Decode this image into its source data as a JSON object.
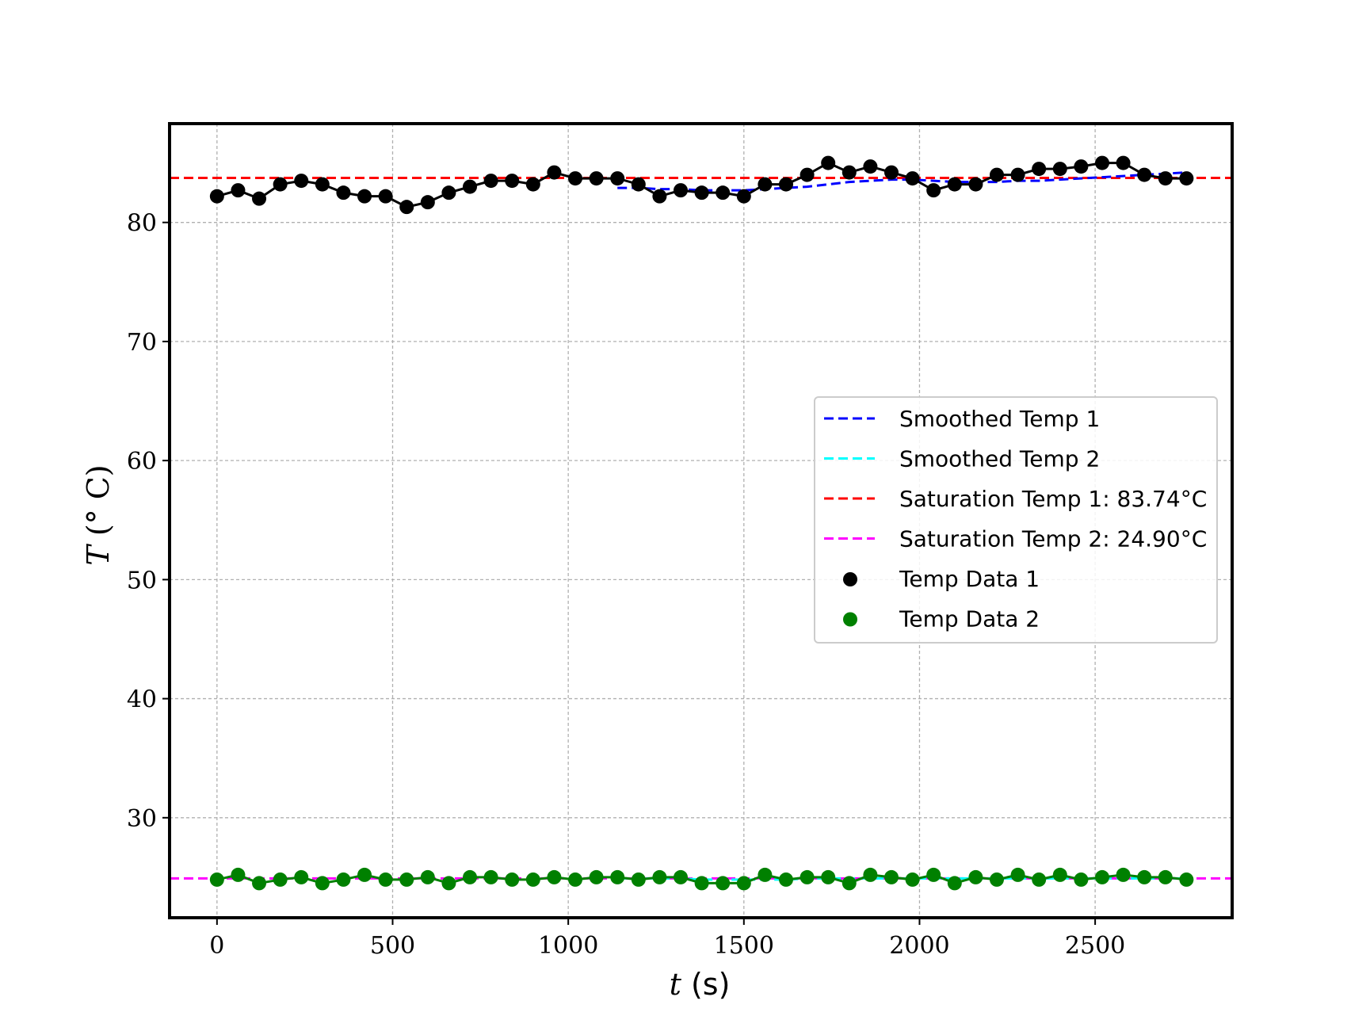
{
  "chart_data": {
    "type": "line",
    "title": "",
    "xlabel": {
      "var": "t",
      "unit": " (s)"
    },
    "ylabel": {
      "var": "T",
      "unit": " (° C)"
    },
    "xlim": [
      -135,
      2890
    ],
    "ylim": [
      21.6,
      88.3
    ],
    "xticks": [
      0,
      500,
      1000,
      1500,
      2000,
      2500
    ],
    "yticks": [
      30,
      40,
      50,
      60,
      70,
      80
    ],
    "grid": true,
    "legend_position": "center-right",
    "colors": {
      "temp1": "#000000",
      "temp2": "#008000",
      "smooth1": "#0000ff",
      "smooth2": "#00ffff",
      "sat1": "#ff0000",
      "sat2": "#ff00ff"
    },
    "legend": [
      {
        "label": "Smoothed Temp 1",
        "style": "dashed",
        "color": "#0000ff"
      },
      {
        "label": "Smoothed Temp 2",
        "style": "dashed",
        "color": "#00ffff"
      },
      {
        "label": "Saturation Temp 1: 83.74°C",
        "style": "dashed",
        "color": "#ff0000"
      },
      {
        "label": "Saturation Temp 2: 24.90°C",
        "style": "dashed",
        "color": "#ff00ff"
      },
      {
        "label": "Temp Data 1",
        "style": "marker",
        "color": "#000000"
      },
      {
        "label": "Temp Data 2",
        "style": "marker",
        "color": "#008000"
      }
    ],
    "saturation_temp_1": 83.74,
    "saturation_temp_2": 24.9,
    "x": [
      0,
      60,
      120,
      180,
      240,
      300,
      360,
      420,
      480,
      540,
      600,
      660,
      720,
      780,
      840,
      900,
      960,
      1020,
      1080,
      1140,
      1200,
      1260,
      1320,
      1380,
      1440,
      1500,
      1560,
      1620,
      1680,
      1740,
      1800,
      1860,
      1920,
      1980,
      2040,
      2100,
      2160,
      2220,
      2280,
      2340,
      2400,
      2460,
      2520,
      2580,
      2640,
      2700,
      2760
    ],
    "temp_data_1": [
      82.2,
      82.7,
      82.0,
      83.2,
      83.5,
      83.2,
      82.5,
      82.2,
      82.2,
      81.3,
      81.7,
      82.5,
      83.0,
      83.5,
      83.5,
      83.2,
      84.2,
      83.7,
      83.7,
      83.7,
      83.2,
      82.2,
      82.7,
      82.5,
      82.5,
      82.2,
      83.2,
      83.2,
      84.0,
      85.0,
      84.2,
      84.7,
      84.2,
      83.7,
      82.7,
      83.2,
      83.2,
      84.0,
      84.0,
      84.5,
      84.5,
      84.7,
      85.0,
      85.0,
      84.0,
      83.7,
      83.7
    ],
    "temp_data_2": [
      24.8,
      25.2,
      24.5,
      24.8,
      25.0,
      24.5,
      24.8,
      25.2,
      24.8,
      24.8,
      25.0,
      24.5,
      25.0,
      25.0,
      24.8,
      24.8,
      25.0,
      24.8,
      25.0,
      25.0,
      24.8,
      25.0,
      25.0,
      24.5,
      24.5,
      24.5,
      25.2,
      24.8,
      25.0,
      25.0,
      24.5,
      25.2,
      25.0,
      24.8,
      25.2,
      24.5,
      25.0,
      24.8,
      25.2,
      24.8,
      25.2,
      24.8,
      25.0,
      25.2,
      25.0,
      25.0,
      24.8
    ],
    "smoothed_1": {
      "x": [
        1140,
        1200,
        1260,
        1320,
        1380,
        1440,
        1500,
        1560,
        1620,
        1680,
        1740,
        1800,
        1860,
        1920,
        1980,
        2040,
        2100,
        2160,
        2220,
        2280,
        2340,
        2400,
        2460,
        2520,
        2580,
        2640,
        2700,
        2760
      ],
      "y": [
        82.9,
        82.9,
        82.8,
        82.8,
        82.7,
        82.7,
        82.7,
        82.8,
        82.9,
        83.0,
        83.2,
        83.4,
        83.5,
        83.6,
        83.6,
        83.5,
        83.4,
        83.4,
        83.4,
        83.5,
        83.5,
        83.6,
        83.7,
        83.8,
        83.9,
        84.0,
        84.1,
        84.2
      ]
    },
    "smoothed_2": {
      "x": [
        1140,
        1200,
        1260,
        1320,
        1380,
        1440,
        1500,
        1560,
        1620,
        1680,
        1740,
        1800,
        1860,
        1920,
        1980,
        2040,
        2100,
        2160,
        2220,
        2280,
        2340,
        2400,
        2460,
        2520,
        2580,
        2640,
        2700,
        2760
      ],
      "y": [
        24.9,
        24.9,
        24.9,
        24.9,
        24.8,
        24.8,
        24.8,
        24.8,
        24.8,
        24.9,
        24.9,
        24.9,
        24.9,
        24.9,
        24.9,
        24.9,
        24.9,
        24.9,
        24.9,
        24.9,
        24.9,
        24.9,
        24.9,
        24.9,
        24.9,
        24.9,
        24.9,
        24.9
      ]
    }
  }
}
